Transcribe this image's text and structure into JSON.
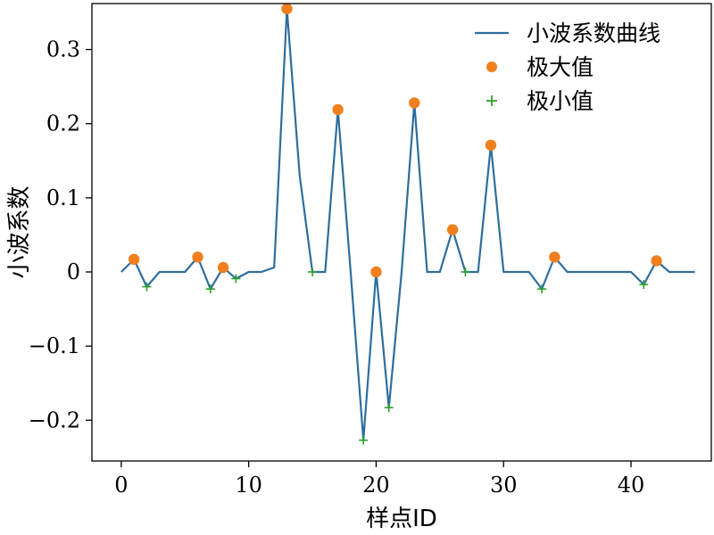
{
  "chart_data": {
    "type": "line",
    "title": "",
    "xlabel": "样点ID",
    "ylabel": "小波系数",
    "xlim": [
      -2.3,
      46.3
    ],
    "ylim": [
      -0.255,
      0.362
    ],
    "xticks": [
      0,
      10,
      20,
      30,
      40
    ],
    "xtick_labels": [
      "0",
      "10",
      "20",
      "30",
      "40"
    ],
    "yticks": [
      -0.2,
      -0.1,
      0,
      0.1,
      0.2,
      0.3
    ],
    "ytick_labels": [
      "−0.2",
      "−0.1",
      "0",
      "0.1",
      "0.2",
      "0.3"
    ],
    "grid": false,
    "legend_position": "top-right",
    "colors": {
      "line": "#2e6e9e",
      "max": "#f07f1d",
      "min": "#2ca02c"
    },
    "series": [
      {
        "name": "小波系数曲线",
        "kind": "line",
        "x": [
          0,
          1,
          2,
          3,
          4,
          5,
          6,
          7,
          8,
          9,
          10,
          11,
          12,
          13,
          14,
          15,
          16,
          17,
          18,
          19,
          20,
          21,
          22,
          23,
          24,
          25,
          26,
          27,
          28,
          29,
          30,
          31,
          32,
          33,
          34,
          35,
          36,
          37,
          38,
          39,
          40,
          41,
          42,
          43,
          44,
          45
        ],
        "y": [
          0,
          0.017,
          -0.02,
          0,
          0,
          0,
          0.02,
          -0.023,
          0.006,
          -0.009,
          0,
          0,
          0.006,
          0.355,
          0.13,
          0,
          0,
          0.219,
          0,
          -0.227,
          0,
          -0.183,
          0,
          0.228,
          0,
          0,
          0.057,
          0,
          0,
          0.171,
          0,
          0,
          0,
          -0.023,
          0.02,
          0,
          0,
          0,
          0,
          0,
          0,
          -0.017,
          0.015,
          0,
          0,
          0
        ]
      },
      {
        "name": "极大值",
        "kind": "scatter",
        "x": [
          1,
          6,
          8,
          13,
          17,
          20,
          23,
          26,
          29,
          34,
          42
        ],
        "y": [
          0.017,
          0.02,
          0.006,
          0.355,
          0.219,
          0,
          0.228,
          0.057,
          0.171,
          0.02,
          0.015
        ]
      },
      {
        "name": "极小值",
        "kind": "scatter",
        "x": [
          2,
          7,
          9,
          15,
          19,
          21,
          27,
          33,
          41
        ],
        "y": [
          -0.02,
          -0.023,
          -0.009,
          0,
          -0.227,
          -0.183,
          0,
          -0.023,
          -0.017
        ]
      }
    ]
  }
}
